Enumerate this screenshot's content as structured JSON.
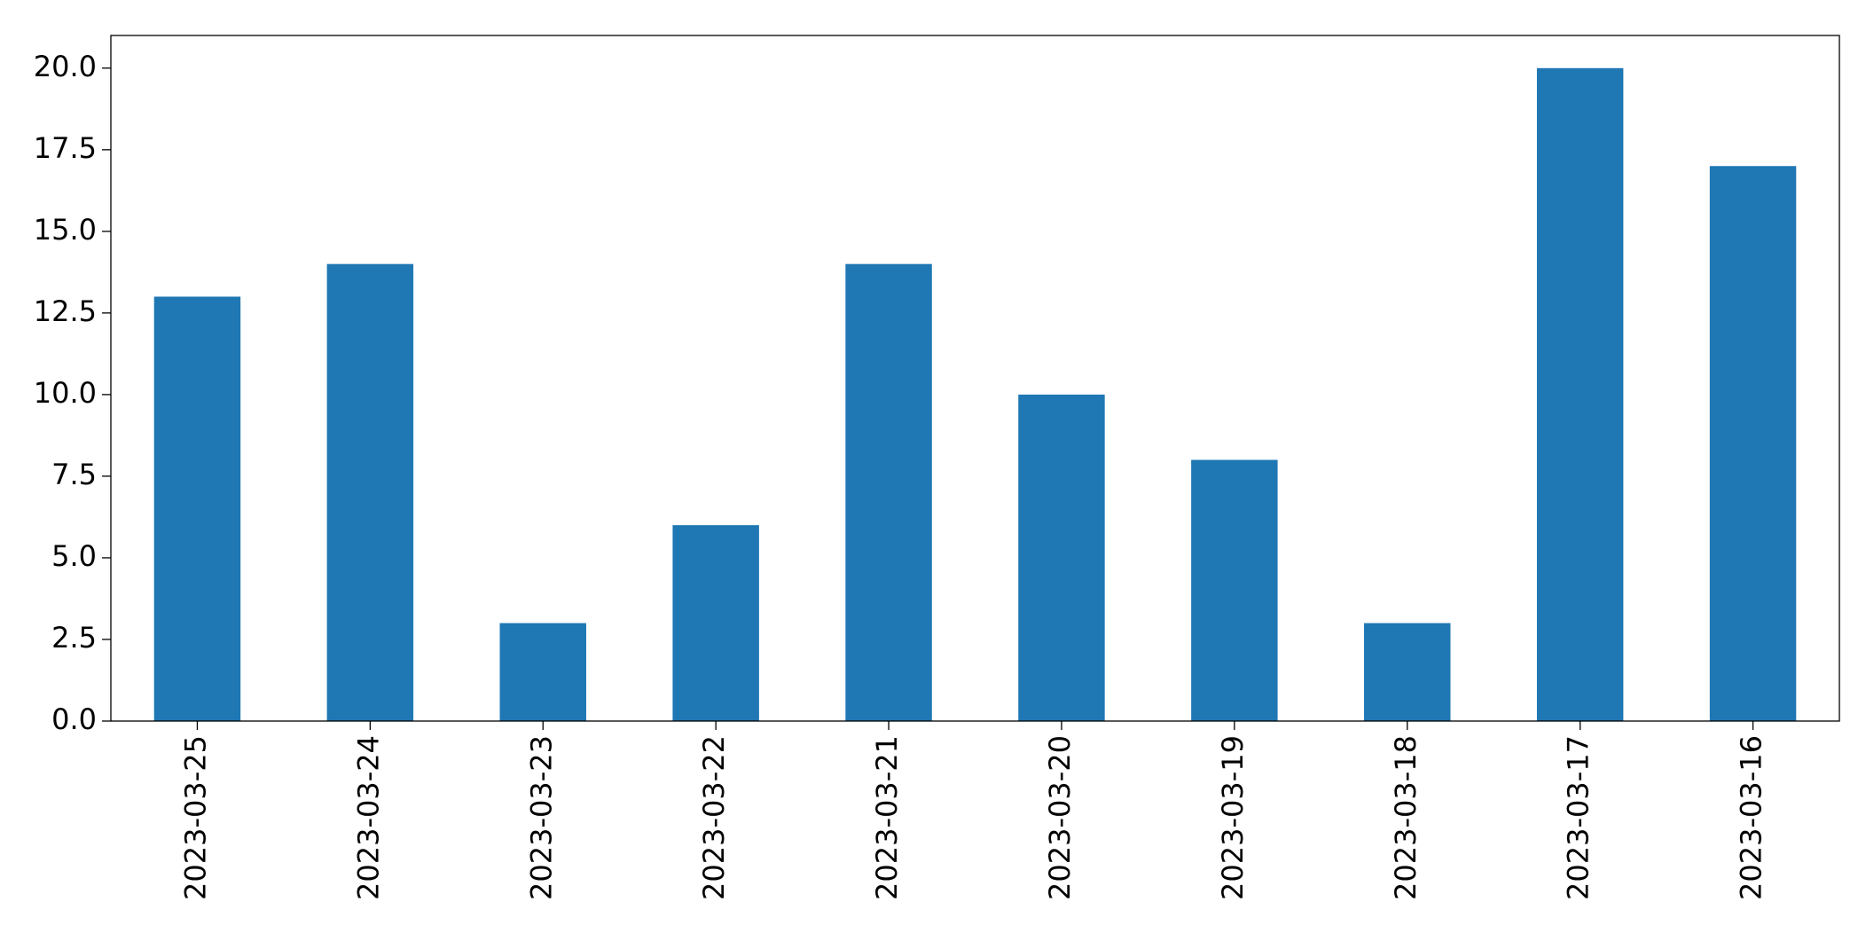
{
  "chart_data": {
    "type": "bar",
    "categories": [
      "2023-03-25",
      "2023-03-24",
      "2023-03-23",
      "2023-03-22",
      "2023-03-21",
      "2023-03-20",
      "2023-03-19",
      "2023-03-18",
      "2023-03-17",
      "2023-03-16"
    ],
    "values": [
      13,
      14,
      3,
      6,
      14,
      10,
      8,
      3,
      20,
      17
    ],
    "color": "#1f77b4",
    "ylim": [
      0,
      21
    ],
    "yticks": [
      {
        "value": 0,
        "label": "0.0"
      },
      2.5,
      {
        "value": 5,
        "label": "5.0"
      },
      7.5,
      {
        "value": 10,
        "label": "10.0"
      },
      12.5,
      {
        "value": 15,
        "label": "15.0"
      },
      17.5,
      {
        "value": 20,
        "label": "20.0"
      }
    ],
    "grid": false
  }
}
